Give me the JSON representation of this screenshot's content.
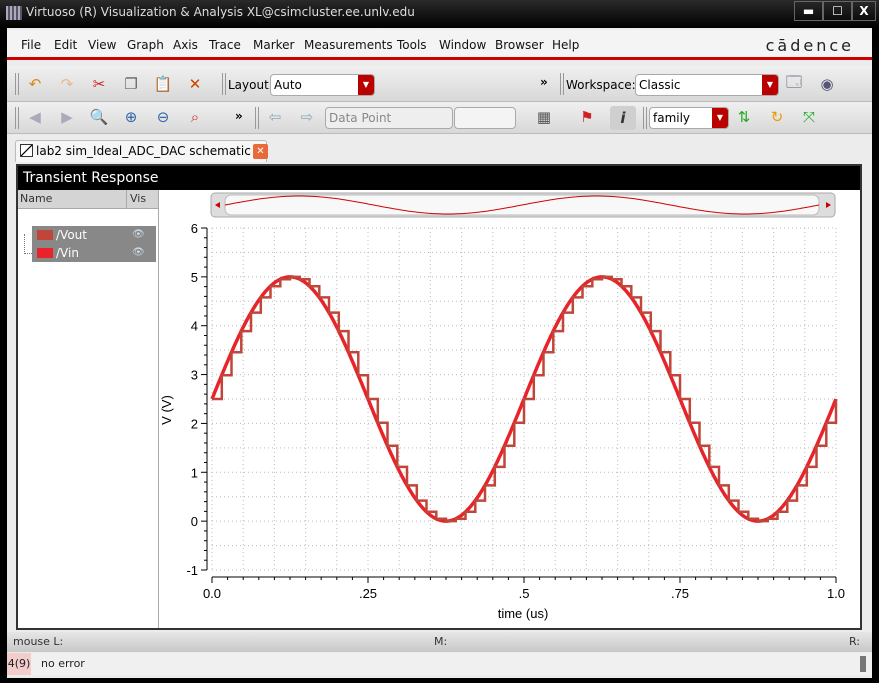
{
  "window": {
    "title": "Virtuoso (R) Visualization & Analysis XL@csimcluster.ee.unlv.edu",
    "minimize": "▬",
    "maximize": "☐",
    "close": "X"
  },
  "menu": [
    "File",
    "Edit",
    "View",
    "Graph",
    "Axis",
    "Trace",
    "Marker",
    "Measurements",
    "Tools",
    "Window",
    "Browser",
    "Help"
  ],
  "brand": "cādence",
  "toolbar1": {
    "layout_label": "Layout:",
    "layout_value": "Auto",
    "more": "»",
    "workspace_label": "Workspace:",
    "workspace_value": "Classic"
  },
  "toolbar2": {
    "mode_value": "Data Point",
    "more": "»",
    "family_value": "family"
  },
  "tab": {
    "label": "lab2 sim_Ideal_ADC_DAC schematic"
  },
  "panel": {
    "title": "Transient Response",
    "col_name": "Name",
    "col_vis": "Vis"
  },
  "traces": [
    {
      "name": "/Vout",
      "color": "#c0463a"
    },
    {
      "name": "/Vin",
      "color": "#e8242a"
    }
  ],
  "chart_data": {
    "type": "line",
    "xlabel": "time (us)",
    "ylabel": "V (V)",
    "xlim": [
      0,
      1.0
    ],
    "ylim": [
      -1,
      6
    ],
    "xticks": [
      "0.0",
      ".25",
      ".5",
      ".75",
      "1.0"
    ],
    "yticks": [
      "-1",
      "0",
      "1",
      "2",
      "3",
      "4",
      "5",
      "6"
    ],
    "grid": true,
    "series": [
      {
        "name": "/Vin",
        "kind": "sine",
        "offset": 2.5,
        "amplitude": 2.5,
        "frequency_MHz": 2,
        "color": "#e8242a"
      },
      {
        "name": "/Vout",
        "kind": "sampled staircase of /Vin",
        "samples_per_us": 64,
        "color": "#c0463a"
      }
    ]
  },
  "status": {
    "mouse_l": "mouse L:",
    "m": "M:",
    "r": "R:",
    "count": "4(9)",
    "message": "no error"
  }
}
